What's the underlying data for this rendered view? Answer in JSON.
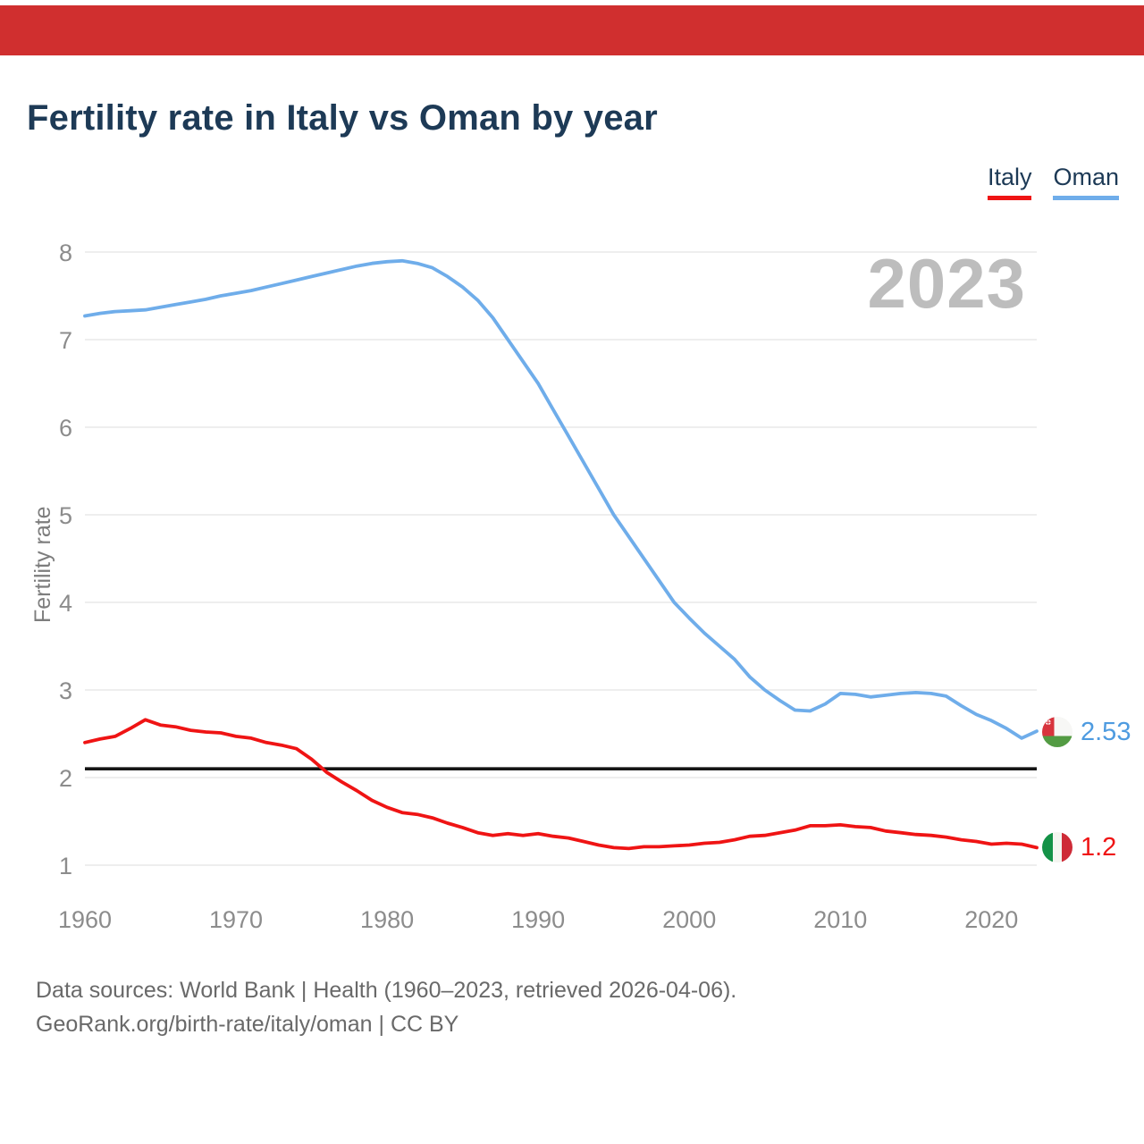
{
  "banner": {
    "color": "#d02f2f"
  },
  "header": {
    "title": "Fertility rate in Italy vs Oman by year"
  },
  "legend": [
    {
      "label": "Italy",
      "color": "#ef1414"
    },
    {
      "label": "Oman",
      "color": "#6fadea"
    }
  ],
  "chart_data": {
    "type": "line",
    "title": "Fertility rate in Italy vs Oman by year",
    "ylabel": "Fertility rate",
    "watermark": "2023",
    "x_start": 1960,
    "x_end": 2023,
    "xticks": [
      1960,
      1970,
      1980,
      1990,
      2000,
      2010,
      2020
    ],
    "yticks": [
      1,
      2,
      3,
      4,
      5,
      6,
      7,
      8
    ],
    "ylim": [
      1,
      8
    ],
    "grid": true,
    "grid_color": "#e8e8e8",
    "tick_color": "#8c8c8c",
    "legend_position": "top-right",
    "reference_line": {
      "value": 2.1,
      "color": "#141414"
    },
    "series": [
      {
        "name": "Italy",
        "color": "#ef1414",
        "values": [
          2.4,
          2.44,
          2.47,
          2.56,
          2.66,
          2.6,
          2.58,
          2.54,
          2.52,
          2.51,
          2.47,
          2.45,
          2.4,
          2.37,
          2.33,
          2.21,
          2.06,
          1.95,
          1.85,
          1.74,
          1.66,
          1.6,
          1.58,
          1.54,
          1.48,
          1.43,
          1.37,
          1.34,
          1.36,
          1.34,
          1.36,
          1.33,
          1.31,
          1.27,
          1.23,
          1.2,
          1.19,
          1.21,
          1.21,
          1.22,
          1.23,
          1.25,
          1.26,
          1.29,
          1.33,
          1.34,
          1.37,
          1.4,
          1.45,
          1.45,
          1.46,
          1.44,
          1.43,
          1.39,
          1.37,
          1.35,
          1.34,
          1.32,
          1.29,
          1.27,
          1.24,
          1.25,
          1.24,
          1.2
        ]
      },
      {
        "name": "Oman",
        "color": "#6fadea",
        "values": [
          7.27,
          7.3,
          7.32,
          7.33,
          7.34,
          7.37,
          7.4,
          7.43,
          7.46,
          7.5,
          7.53,
          7.56,
          7.6,
          7.64,
          7.68,
          7.72,
          7.76,
          7.8,
          7.84,
          7.87,
          7.89,
          7.9,
          7.87,
          7.82,
          7.72,
          7.6,
          7.45,
          7.25,
          7.0,
          6.75,
          6.5,
          6.2,
          5.9,
          5.6,
          5.3,
          5.0,
          4.75,
          4.5,
          4.25,
          4.0,
          3.82,
          3.65,
          3.5,
          3.35,
          3.15,
          3.0,
          2.88,
          2.77,
          2.76,
          2.84,
          2.96,
          2.95,
          2.92,
          2.94,
          2.96,
          2.97,
          2.96,
          2.93,
          2.82,
          2.72,
          2.65,
          2.56,
          2.45,
          2.53
        ]
      }
    ]
  },
  "end_labels": {
    "oman": {
      "value": "2.53",
      "color": "#4e9be0"
    },
    "italy": {
      "value": "1.2",
      "color": "#ef1414"
    }
  },
  "footer": {
    "line1": "Data sources: World Bank | Health (1960–2023, retrieved 2026-04-06).",
    "line2": "GeoRank.org/birth-rate/italy/oman | CC BY"
  }
}
